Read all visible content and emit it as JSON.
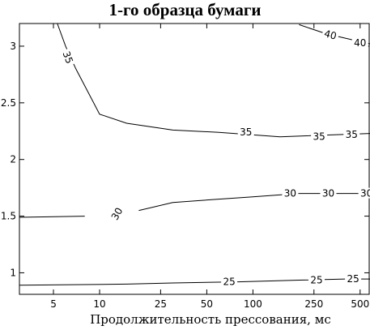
{
  "chart_data": {
    "type": "contour",
    "title": "1-го образца бумаги",
    "xlabel": "Продолжительность прессования, мс",
    "ylabel": "",
    "xscale": "log",
    "xlim": [
      3,
      580
    ],
    "ylim": [
      0.81,
      3.2
    ],
    "xticks": [
      {
        "value": 5,
        "label": "5"
      },
      {
        "value": 10,
        "label": "10"
      },
      {
        "value": 25,
        "label": "25"
      },
      {
        "value": 50,
        "label": "50"
      },
      {
        "value": 100,
        "label": "100"
      },
      {
        "value": 250,
        "label": "250"
      },
      {
        "value": 500,
        "label": "500"
      }
    ],
    "yticks": [
      {
        "value": 1,
        "label": "1"
      },
      {
        "value": 1.5,
        "label": "1.5"
      },
      {
        "value": 2,
        "label": "2"
      },
      {
        "value": 2.5,
        "label": "2.5"
      },
      {
        "value": 3,
        "label": "3"
      }
    ],
    "contours": [
      {
        "level": "25",
        "segments": [
          [
            [
              3,
              0.89
            ],
            [
              15,
              0.9
            ],
            [
              30,
              0.91
            ],
            [
              80,
              0.92
            ],
            [
              200,
              0.935
            ],
            [
              400,
              0.945
            ],
            [
              580,
              0.945
            ]
          ]
        ],
        "labels": [
          {
            "text": "25",
            "x": 70,
            "y": 0.92,
            "rotate": 0
          },
          {
            "text": "25",
            "x": 260,
            "y": 0.935,
            "rotate": 0
          },
          {
            "text": "25",
            "x": 450,
            "y": 0.945,
            "rotate": 0
          }
        ]
      },
      {
        "level": "30",
        "segments": [
          [
            [
              3,
              1.49
            ],
            [
              8,
              1.5
            ]
          ],
          [
            [
              18,
              1.55
            ],
            [
              30,
              1.62
            ],
            [
              60,
              1.65
            ],
            [
              100,
              1.67
            ],
            [
              200,
              1.7
            ],
            [
              580,
              1.7
            ]
          ]
        ],
        "labels": [
          {
            "text": "30",
            "x": 13,
            "y": 1.52,
            "rotate": -60
          },
          {
            "text": "30",
            "x": 175,
            "y": 1.7,
            "rotate": 0
          },
          {
            "text": "30",
            "x": 310,
            "y": 1.7,
            "rotate": 0
          },
          {
            "text": "30",
            "x": 550,
            "y": 1.7,
            "rotate": 0
          }
        ]
      },
      {
        "level": "35",
        "segments": [
          [
            [
              5.3,
              3.2
            ],
            [
              6,
              3.0
            ],
            [
              7,
              2.8
            ],
            [
              10,
              2.4
            ],
            [
              15,
              2.32
            ],
            [
              30,
              2.26
            ],
            [
              60,
              2.24
            ],
            [
              150,
              2.2
            ],
            [
              580,
              2.23
            ]
          ]
        ],
        "labels": [
          {
            "text": "35",
            "x": 6.2,
            "y": 2.9,
            "rotate": 70
          },
          {
            "text": "35",
            "x": 90,
            "y": 2.24,
            "rotate": 0
          },
          {
            "text": "35",
            "x": 270,
            "y": 2.2,
            "rotate": 0
          },
          {
            "text": "35",
            "x": 440,
            "y": 2.22,
            "rotate": 0
          }
        ]
      },
      {
        "level": "40",
        "segments": [
          [
            [
              200,
              3.19
            ],
            [
              300,
              3.11
            ],
            [
              580,
              3.02
            ]
          ]
        ],
        "labels": [
          {
            "text": "40",
            "x": 320,
            "y": 3.1,
            "rotate": 15
          },
          {
            "text": "40",
            "x": 500,
            "y": 3.03,
            "rotate": 0
          }
        ]
      }
    ]
  }
}
